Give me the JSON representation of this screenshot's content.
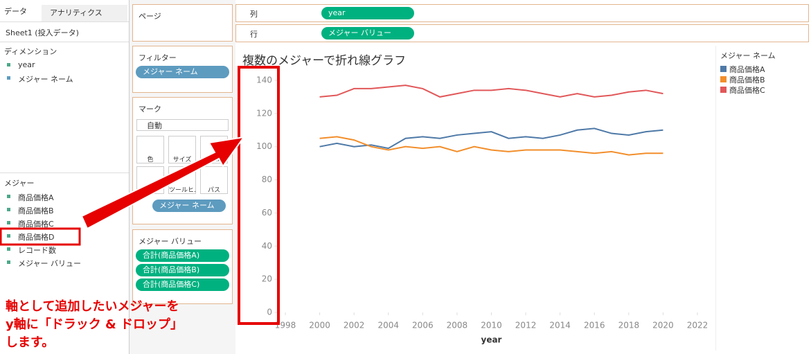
{
  "tabs": [
    "データ",
    "アナリティクス"
  ],
  "datasource": "Sheet1 (投入データ)",
  "dimensions": {
    "title": "ディメンション",
    "items": [
      "year",
      "メジャー ネーム"
    ]
  },
  "measures": {
    "title": "メジャー",
    "items": [
      "商品価格A",
      "商品価格B",
      "商品価格C",
      "商品価格D",
      "レコード数",
      "メジャー バリュー"
    ]
  },
  "pages": "ページ",
  "filters": {
    "title": "フィルター",
    "pills": [
      "メジャー ネーム"
    ]
  },
  "marks": {
    "title": "マーク",
    "mark_type": "自動",
    "cards": [
      "色",
      "サイズ",
      "ラベル",
      "詳細",
      "ツールヒ…",
      "パス"
    ],
    "pill": "メジャー ネーム"
  },
  "measure_values": {
    "title": "メジャー バリュー",
    "pills": [
      "合計(商品価格A)",
      "合計(商品価格B)",
      "合計(商品価格C)"
    ]
  },
  "shelves": {
    "columns": {
      "label": "列",
      "pill": "year"
    },
    "rows": {
      "label": "行",
      "pill": "メジャー バリュー"
    }
  },
  "annotation": [
    "軸として追加したいメジャーを",
    "y軸に「ドラック & ドロップ」",
    "します。"
  ],
  "chart_data": {
    "type": "line",
    "title": "複数のメジャーで折れ線グラフ",
    "x_label": "year",
    "legend_title": "メジャー ネーム",
    "x": [
      2000,
      2001,
      2002,
      2003,
      2004,
      2005,
      2006,
      2007,
      2008,
      2009,
      2010,
      2011,
      2012,
      2013,
      2014,
      2015,
      2016,
      2017,
      2018,
      2019,
      2020
    ],
    "series": [
      {
        "name": "商品価格A",
        "color": "#4e79a7",
        "values": [
          100,
          102,
          100,
          101,
          99,
          105,
          106,
          105,
          107,
          108,
          109,
          105,
          106,
          105,
          107,
          110,
          111,
          108,
          107,
          109,
          110
        ]
      },
      {
        "name": "商品価格B",
        "color": "#f28e2b",
        "values": [
          105,
          106,
          104,
          100,
          98,
          100,
          99,
          100,
          97,
          100,
          98,
          97,
          98,
          98,
          98,
          97,
          96,
          97,
          95,
          96,
          96
        ]
      },
      {
        "name": "商品価格C",
        "color": "#e15759",
        "values": [
          130,
          131,
          135,
          135,
          136,
          137,
          135,
          130,
          132,
          134,
          134,
          135,
          134,
          132,
          130,
          132,
          130,
          131,
          133,
          134,
          132
        ]
      }
    ],
    "xlim": [
      1997.5,
      2022.5
    ],
    "xticks": [
      1998,
      2000,
      2002,
      2004,
      2006,
      2008,
      2010,
      2012,
      2014,
      2016,
      2018,
      2020,
      2022
    ],
    "ylim": [
      0,
      145
    ],
    "yticks": [
      0,
      20,
      40,
      60,
      80,
      100,
      120,
      140
    ],
    "grid": false
  }
}
